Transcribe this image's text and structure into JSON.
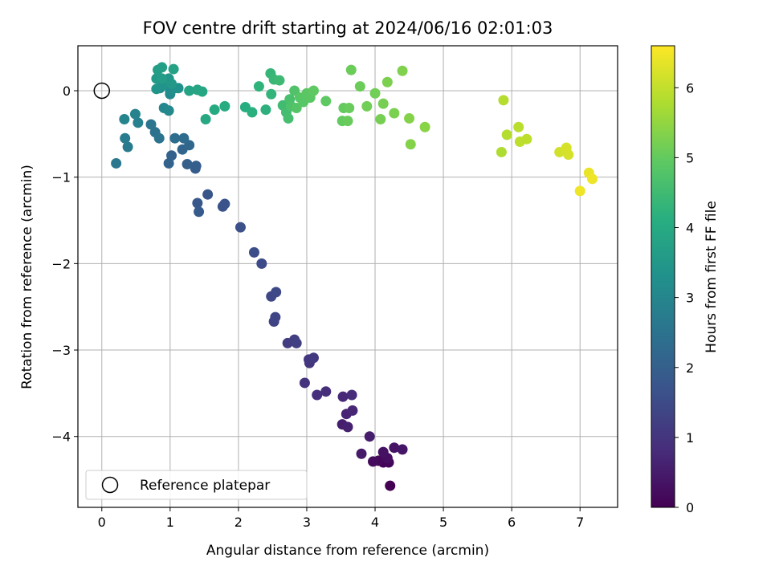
{
  "chart_data": {
    "type": "scatter",
    "title": "FOV centre drift starting at 2024/06/16 02:01:03",
    "xlabel": "Angular distance from reference (arcmin)",
    "ylabel": "Rotation from reference (arcmin)",
    "xlim": [
      -0.35,
      7.55
    ],
    "ylim": [
      -4.82,
      0.52
    ],
    "xticks": [
      0,
      1,
      2,
      3,
      4,
      5,
      6,
      7
    ],
    "yticks": [
      0,
      -1,
      -2,
      -3,
      -4
    ],
    "grid": true,
    "legend": {
      "position": "lower-left",
      "entries": [
        "Reference platepar"
      ]
    },
    "reference_point": {
      "x": 0,
      "y": 0
    },
    "colormap": "viridis",
    "colorbar": {
      "label": "Hours from first FF file",
      "range": [
        0,
        6.6
      ],
      "ticks": [
        0,
        1,
        2,
        3,
        4,
        5,
        6
      ]
    },
    "series": [
      {
        "name": "",
        "points": [
          {
            "x": 4.22,
            "y": -4.57,
            "h": 0.0
          },
          {
            "x": 4.12,
            "y": -4.3,
            "h": 0.05
          },
          {
            "x": 4.2,
            "y": -4.3,
            "h": 0.1
          },
          {
            "x": 4.05,
            "y": -4.28,
            "h": 0.15
          },
          {
            "x": 3.97,
            "y": -4.29,
            "h": 0.2
          },
          {
            "x": 4.18,
            "y": -4.25,
            "h": 0.25
          },
          {
            "x": 4.12,
            "y": -4.18,
            "h": 0.3
          },
          {
            "x": 4.28,
            "y": -4.13,
            "h": 0.35
          },
          {
            "x": 4.4,
            "y": -4.15,
            "h": 0.4
          },
          {
            "x": 3.8,
            "y": -4.2,
            "h": 0.45
          },
          {
            "x": 3.92,
            "y": -4.0,
            "h": 0.5
          },
          {
            "x": 3.52,
            "y": -3.86,
            "h": 0.55
          },
          {
            "x": 3.6,
            "y": -3.89,
            "h": 0.6
          },
          {
            "x": 3.58,
            "y": -3.74,
            "h": 0.65
          },
          {
            "x": 3.67,
            "y": -3.7,
            "h": 0.7
          },
          {
            "x": 3.53,
            "y": -3.54,
            "h": 0.75
          },
          {
            "x": 3.66,
            "y": -3.52,
            "h": 0.8
          },
          {
            "x": 3.28,
            "y": -3.48,
            "h": 0.85
          },
          {
            "x": 3.15,
            "y": -3.52,
            "h": 0.9
          },
          {
            "x": 2.97,
            "y": -3.38,
            "h": 0.95
          },
          {
            "x": 3.04,
            "y": -3.15,
            "h": 1.0
          },
          {
            "x": 3.03,
            "y": -3.11,
            "h": 1.05
          },
          {
            "x": 3.1,
            "y": -3.09,
            "h": 1.1
          },
          {
            "x": 2.72,
            "y": -2.92,
            "h": 1.15
          },
          {
            "x": 2.82,
            "y": -2.88,
            "h": 1.2
          },
          {
            "x": 2.85,
            "y": -2.92,
            "h": 1.25
          },
          {
            "x": 2.52,
            "y": -2.67,
            "h": 1.3
          },
          {
            "x": 2.54,
            "y": -2.62,
            "h": 1.35
          },
          {
            "x": 2.48,
            "y": -2.38,
            "h": 1.4
          },
          {
            "x": 2.55,
            "y": -2.33,
            "h": 1.45
          },
          {
            "x": 2.34,
            "y": -2.0,
            "h": 1.5
          },
          {
            "x": 2.23,
            "y": -1.87,
            "h": 1.55
          },
          {
            "x": 2.03,
            "y": -1.58,
            "h": 1.6
          },
          {
            "x": 1.77,
            "y": -1.34,
            "h": 1.65
          },
          {
            "x": 1.8,
            "y": -1.31,
            "h": 1.7
          },
          {
            "x": 1.55,
            "y": -1.2,
            "h": 1.75
          },
          {
            "x": 1.4,
            "y": -1.3,
            "h": 1.8
          },
          {
            "x": 1.42,
            "y": -1.4,
            "h": 1.85
          },
          {
            "x": 1.37,
            "y": -0.9,
            "h": 1.9
          },
          {
            "x": 1.38,
            "y": -0.87,
            "h": 1.95
          },
          {
            "x": 1.25,
            "y": -0.85,
            "h": 2.0
          },
          {
            "x": 1.02,
            "y": -0.75,
            "h": 2.05
          },
          {
            "x": 0.98,
            "y": -0.84,
            "h": 2.1
          },
          {
            "x": 1.18,
            "y": -0.68,
            "h": 2.15
          },
          {
            "x": 1.28,
            "y": -0.63,
            "h": 2.2
          },
          {
            "x": 1.2,
            "y": -0.55,
            "h": 2.3
          },
          {
            "x": 1.07,
            "y": -0.55,
            "h": 2.35
          },
          {
            "x": 0.78,
            "y": -0.48,
            "h": 2.45
          },
          {
            "x": 0.84,
            "y": -0.55,
            "h": 2.5
          },
          {
            "x": 0.72,
            "y": -0.39,
            "h": 2.55
          },
          {
            "x": 0.21,
            "y": -0.84,
            "h": 2.6
          },
          {
            "x": 0.38,
            "y": -0.65,
            "h": 2.7
          },
          {
            "x": 0.34,
            "y": -0.55,
            "h": 2.75
          },
          {
            "x": 0.53,
            "y": -0.37,
            "h": 2.85
          },
          {
            "x": 0.49,
            "y": -0.27,
            "h": 2.9
          },
          {
            "x": 0.33,
            "y": -0.33,
            "h": 2.95
          },
          {
            "x": 0.91,
            "y": -0.2,
            "h": 3.0
          },
          {
            "x": 0.98,
            "y": -0.23,
            "h": 3.05
          },
          {
            "x": 1.0,
            "y": -0.04,
            "h": 3.1
          },
          {
            "x": 0.85,
            "y": 0.03,
            "h": 3.15
          },
          {
            "x": 1.0,
            "y": 0.0,
            "h": 3.2
          },
          {
            "x": 1.07,
            "y": 0.03,
            "h": 3.25
          },
          {
            "x": 1.12,
            "y": 0.03,
            "h": 3.3
          },
          {
            "x": 0.91,
            "y": 0.07,
            "h": 3.35
          },
          {
            "x": 0.8,
            "y": 0.02,
            "h": 3.4
          },
          {
            "x": 0.98,
            "y": 0.14,
            "h": 3.45
          },
          {
            "x": 1.02,
            "y": 0.08,
            "h": 3.5
          },
          {
            "x": 0.8,
            "y": 0.14,
            "h": 3.55
          },
          {
            "x": 0.88,
            "y": 0.14,
            "h": 3.6
          },
          {
            "x": 0.82,
            "y": 0.24,
            "h": 3.65
          },
          {
            "x": 0.88,
            "y": 0.27,
            "h": 3.7
          },
          {
            "x": 1.05,
            "y": 0.25,
            "h": 3.75
          },
          {
            "x": 1.28,
            "y": 0.0,
            "h": 3.8
          },
          {
            "x": 1.4,
            "y": 0.01,
            "h": 3.85
          },
          {
            "x": 1.47,
            "y": -0.01,
            "h": 3.9
          },
          {
            "x": 1.52,
            "y": -0.33,
            "h": 3.95
          },
          {
            "x": 1.65,
            "y": -0.22,
            "h": 4.0
          },
          {
            "x": 1.8,
            "y": -0.18,
            "h": 4.05
          },
          {
            "x": 2.1,
            "y": -0.19,
            "h": 4.1
          },
          {
            "x": 2.2,
            "y": -0.25,
            "h": 4.15
          },
          {
            "x": 2.4,
            "y": -0.22,
            "h": 4.2
          },
          {
            "x": 2.3,
            "y": 0.05,
            "h": 4.25
          },
          {
            "x": 2.48,
            "y": -0.04,
            "h": 4.3
          },
          {
            "x": 2.47,
            "y": 0.2,
            "h": 4.35
          },
          {
            "x": 2.52,
            "y": 0.13,
            "h": 4.4
          },
          {
            "x": 2.6,
            "y": 0.12,
            "h": 4.45
          },
          {
            "x": 2.65,
            "y": -0.17,
            "h": 4.5
          },
          {
            "x": 2.7,
            "y": -0.25,
            "h": 4.55
          },
          {
            "x": 2.73,
            "y": -0.32,
            "h": 4.6
          },
          {
            "x": 2.75,
            "y": -0.1,
            "h": 4.65
          },
          {
            "x": 2.77,
            "y": -0.18,
            "h": 4.7
          },
          {
            "x": 2.82,
            "y": 0.0,
            "h": 4.75
          },
          {
            "x": 2.85,
            "y": -0.2,
            "h": 4.8
          },
          {
            "x": 2.9,
            "y": -0.08,
            "h": 4.85
          },
          {
            "x": 2.95,
            "y": -0.13,
            "h": 4.85
          },
          {
            "x": 3.0,
            "y": -0.03,
            "h": 4.9
          },
          {
            "x": 3.05,
            "y": -0.08,
            "h": 4.9
          },
          {
            "x": 3.1,
            "y": 0.0,
            "h": 4.95
          },
          {
            "x": 3.28,
            "y": -0.12,
            "h": 4.95
          },
          {
            "x": 3.52,
            "y": -0.35,
            "h": 5.0
          },
          {
            "x": 3.54,
            "y": -0.2,
            "h": 5.0
          },
          {
            "x": 3.6,
            "y": -0.35,
            "h": 5.05
          },
          {
            "x": 3.62,
            "y": -0.2,
            "h": 5.05
          },
          {
            "x": 3.65,
            "y": 0.24,
            "h": 5.1
          },
          {
            "x": 3.78,
            "y": 0.05,
            "h": 5.1
          },
          {
            "x": 3.88,
            "y": -0.18,
            "h": 5.15
          },
          {
            "x": 4.0,
            "y": -0.03,
            "h": 5.15
          },
          {
            "x": 4.08,
            "y": -0.33,
            "h": 5.2
          },
          {
            "x": 4.12,
            "y": -0.15,
            "h": 5.2
          },
          {
            "x": 4.18,
            "y": 0.1,
            "h": 5.25
          },
          {
            "x": 4.28,
            "y": -0.26,
            "h": 5.25
          },
          {
            "x": 4.4,
            "y": 0.23,
            "h": 5.3
          },
          {
            "x": 4.5,
            "y": -0.32,
            "h": 5.35
          },
          {
            "x": 4.52,
            "y": -0.62,
            "h": 5.35
          },
          {
            "x": 4.73,
            "y": -0.42,
            "h": 5.4
          },
          {
            "x": 5.85,
            "y": -0.71,
            "h": 5.8
          },
          {
            "x": 5.88,
            "y": -0.11,
            "h": 5.85
          },
          {
            "x": 5.93,
            "y": -0.51,
            "h": 5.85
          },
          {
            "x": 6.1,
            "y": -0.42,
            "h": 5.9
          },
          {
            "x": 6.12,
            "y": -0.59,
            "h": 5.95
          },
          {
            "x": 6.22,
            "y": -0.56,
            "h": 5.95
          },
          {
            "x": 6.7,
            "y": -0.71,
            "h": 6.15
          },
          {
            "x": 6.8,
            "y": -0.66,
            "h": 6.2
          },
          {
            "x": 6.83,
            "y": -0.74,
            "h": 6.2
          },
          {
            "x": 7.0,
            "y": -1.16,
            "h": 6.45
          },
          {
            "x": 7.13,
            "y": -0.95,
            "h": 6.4
          },
          {
            "x": 7.18,
            "y": -1.02,
            "h": 6.45
          }
        ]
      }
    ]
  }
}
